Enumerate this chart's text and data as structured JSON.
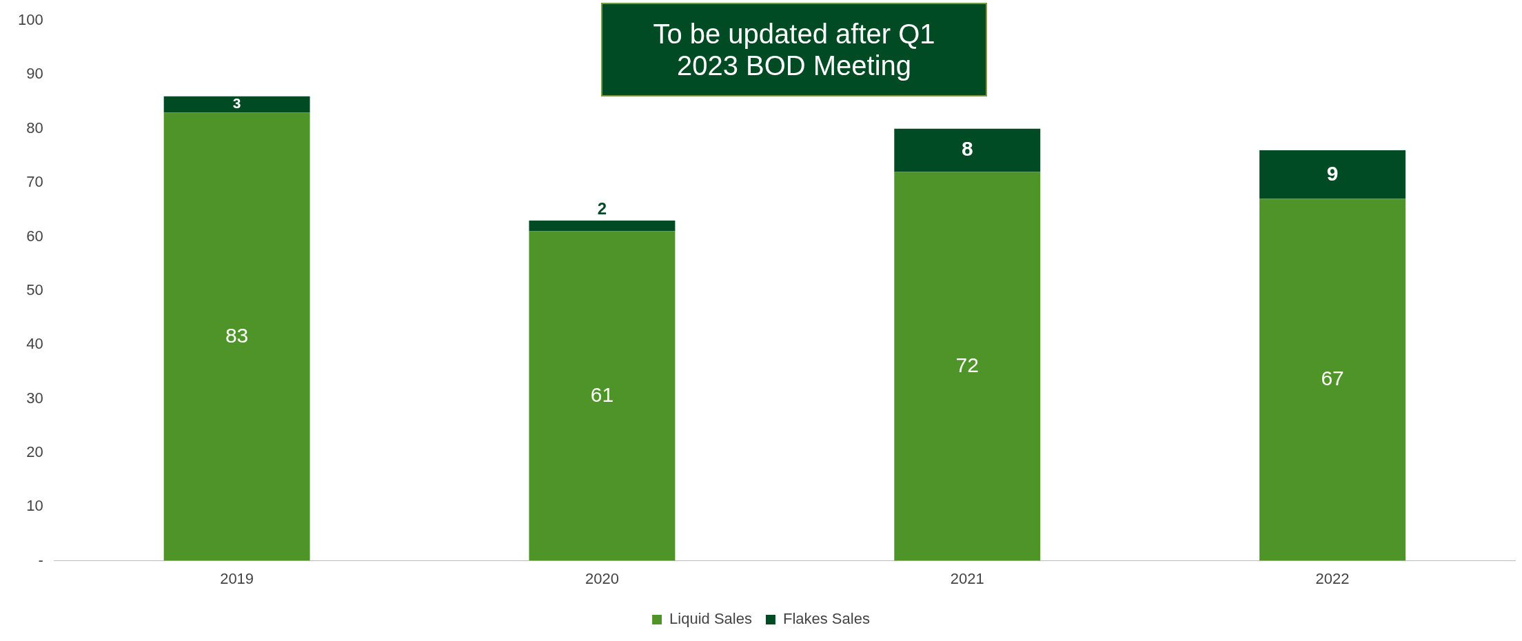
{
  "chart_data": {
    "type": "bar",
    "stacked": true,
    "categories": [
      "2019",
      "2020",
      "2021",
      "2022"
    ],
    "series": [
      {
        "name": "Liquid Sales",
        "color": "#4f9428",
        "values": [
          83,
          61,
          72,
          67
        ]
      },
      {
        "name": "Flakes Sales",
        "color": "#004b23",
        "values": [
          3,
          2,
          8,
          9
        ]
      }
    ],
    "ylim": [
      0,
      100
    ],
    "yticks": [
      {
        "value": 0,
        "label": "-"
      },
      10,
      20,
      30,
      40,
      50,
      60,
      70,
      80,
      90,
      100
    ],
    "data_labels": true,
    "legend": "bottom",
    "grid": false,
    "annotations": [
      "To be updated after Q1 2023 BOD Meeting"
    ]
  }
}
